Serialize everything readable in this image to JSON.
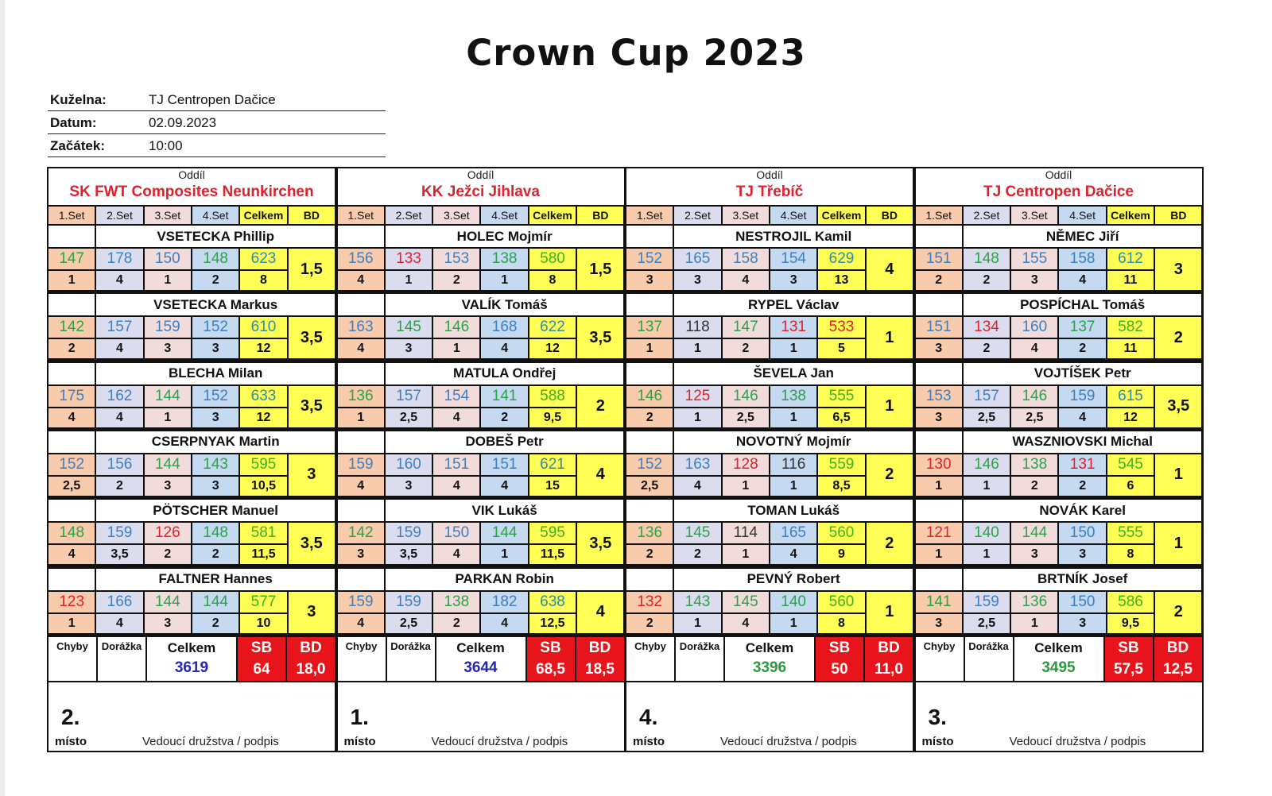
{
  "title": "Crown Cup 2023",
  "info": [
    {
      "label": "Kuželna:",
      "value": "TJ Centropen Dačice"
    },
    {
      "label": "Datum:",
      "value": "02.09.2023"
    },
    {
      "label": "Začátek:",
      "value": "10:00"
    }
  ],
  "labels": {
    "oddil": "Oddíl",
    "sets": [
      "1.Set",
      "2.Set",
      "3.Set",
      "4.Set",
      "Celkem",
      "BD"
    ],
    "chyby": "Chyby",
    "dorazka": "Dorážka",
    "celkem": "Celkem",
    "sb": "SB",
    "bd": "BD",
    "misto": "místo",
    "podpis": "Vedoucí družstva / podpis"
  },
  "colors": {
    "green": "#2aa24a",
    "blue": "#3a7fc4",
    "red": "#e0202a",
    "black": "#333333",
    "total_high": "#2c8fa6",
    "total_mid": "#3db41e",
    "sum_blue": "#2626b8",
    "sum_green": "#2a9a3a"
  },
  "teams": [
    {
      "name": "SK FWT Composites Neunkirchen",
      "players": [
        {
          "name": "VSETECKA Phillip",
          "scores": [
            147,
            178,
            150,
            148,
            623
          ],
          "ranks": [
            "1",
            "4",
            "1",
            "2",
            "8"
          ],
          "bd": "1,5"
        },
        {
          "name": "VSETECKA Markus",
          "scores": [
            142,
            157,
            159,
            152,
            610
          ],
          "ranks": [
            "2",
            "4",
            "3",
            "3",
            "12"
          ],
          "bd": "3,5"
        },
        {
          "name": "BLECHA Milan",
          "scores": [
            175,
            162,
            144,
            152,
            633
          ],
          "ranks": [
            "4",
            "4",
            "1",
            "3",
            "12"
          ],
          "bd": "3,5"
        },
        {
          "name": "CSERPNYAK Martin",
          "scores": [
            152,
            156,
            144,
            143,
            595
          ],
          "ranks": [
            "2,5",
            "2",
            "3",
            "3",
            "10,5"
          ],
          "bd": "3"
        },
        {
          "name": "PÖTSCHER Manuel",
          "scores": [
            148,
            159,
            126,
            148,
            581
          ],
          "ranks": [
            "4",
            "3,5",
            "2",
            "2",
            "11,5"
          ],
          "bd": "3,5"
        },
        {
          "name": "FALTNER Hannes",
          "scores": [
            123,
            166,
            144,
            144,
            577
          ],
          "ranks": [
            "1",
            "4",
            "3",
            "2",
            "10"
          ],
          "bd": "3"
        }
      ],
      "total": "3619",
      "total_color": "sum_blue",
      "sb": "64",
      "bd": "18,0",
      "place": "2."
    },
    {
      "name": "KK Ježci Jihlava",
      "players": [
        {
          "name": "HOLEC Mojmír",
          "scores": [
            156,
            133,
            153,
            138,
            580
          ],
          "ranks": [
            "4",
            "1",
            "2",
            "1",
            "8"
          ],
          "bd": "1,5"
        },
        {
          "name": "VALÍK Tomáš",
          "scores": [
            163,
            145,
            146,
            168,
            622
          ],
          "ranks": [
            "4",
            "3",
            "1",
            "4",
            "12"
          ],
          "bd": "3,5"
        },
        {
          "name": "MATULA Ondřej",
          "scores": [
            136,
            157,
            154,
            141,
            588
          ],
          "ranks": [
            "1",
            "2,5",
            "4",
            "2",
            "9,5"
          ],
          "bd": "2"
        },
        {
          "name": "DOBEŠ Petr",
          "scores": [
            159,
            160,
            151,
            151,
            621
          ],
          "ranks": [
            "4",
            "3",
            "4",
            "4",
            "15"
          ],
          "bd": "4"
        },
        {
          "name": "VIK Lukáš",
          "scores": [
            142,
            159,
            150,
            144,
            595
          ],
          "ranks": [
            "3",
            "3,5",
            "4",
            "1",
            "11,5"
          ],
          "bd": "3,5"
        },
        {
          "name": "PARKAN Robin",
          "scores": [
            159,
            159,
            138,
            182,
            638
          ],
          "ranks": [
            "4",
            "2,5",
            "2",
            "4",
            "12,5"
          ],
          "bd": "4"
        }
      ],
      "total": "3644",
      "total_color": "sum_blue",
      "sb": "68,5",
      "bd": "18,5",
      "place": "1."
    },
    {
      "name": "TJ Třebíč",
      "players": [
        {
          "name": "NESTROJIL Kamil",
          "scores": [
            152,
            165,
            158,
            154,
            629
          ],
          "ranks": [
            "3",
            "3",
            "4",
            "3",
            "13"
          ],
          "bd": "4"
        },
        {
          "name": "RYPEL Václav",
          "scores": [
            137,
            118,
            147,
            131,
            533
          ],
          "ranks": [
            "1",
            "1",
            "2",
            "1",
            "5"
          ],
          "bd": "1"
        },
        {
          "name": "ŠEVELA Jan",
          "scores": [
            146,
            125,
            146,
            138,
            555
          ],
          "ranks": [
            "2",
            "1",
            "2,5",
            "1",
            "6,5"
          ],
          "bd": "1"
        },
        {
          "name": "NOVOTNÝ Mojmír",
          "scores": [
            152,
            163,
            128,
            116,
            559
          ],
          "ranks": [
            "2,5",
            "4",
            "1",
            "1",
            "8,5"
          ],
          "bd": "2"
        },
        {
          "name": "TOMAN Lukáš",
          "scores": [
            136,
            145,
            114,
            165,
            560
          ],
          "ranks": [
            "2",
            "2",
            "1",
            "4",
            "9"
          ],
          "bd": "2"
        },
        {
          "name": "PEVNÝ Robert",
          "scores": [
            132,
            143,
            145,
            140,
            560
          ],
          "ranks": [
            "2",
            "1",
            "4",
            "1",
            "8"
          ],
          "bd": "1"
        }
      ],
      "total": "3396",
      "total_color": "sum_green",
      "sb": "50",
      "bd": "11,0",
      "place": "4."
    },
    {
      "name": "TJ Centropen Dačice",
      "players": [
        {
          "name": "NĚMEC Jiří",
          "scores": [
            151,
            148,
            155,
            158,
            612
          ],
          "ranks": [
            "2",
            "2",
            "3",
            "4",
            "11"
          ],
          "bd": "3"
        },
        {
          "name": "POSPÍCHAL Tomáš",
          "scores": [
            151,
            134,
            160,
            137,
            582
          ],
          "ranks": [
            "3",
            "2",
            "4",
            "2",
            "11"
          ],
          "bd": "2"
        },
        {
          "name": "VOJTÍŠEK Petr",
          "scores": [
            153,
            157,
            146,
            159,
            615
          ],
          "ranks": [
            "3",
            "2,5",
            "2,5",
            "4",
            "12"
          ],
          "bd": "3,5"
        },
        {
          "name": "WASZNIOVSKI Michal",
          "scores": [
            130,
            146,
            138,
            131,
            545
          ],
          "ranks": [
            "1",
            "1",
            "2",
            "2",
            "6"
          ],
          "bd": "1"
        },
        {
          "name": "NOVÁK Karel",
          "scores": [
            121,
            140,
            144,
            150,
            555
          ],
          "ranks": [
            "1",
            "1",
            "3",
            "3",
            "8"
          ],
          "bd": "1"
        },
        {
          "name": "BRTNÍK Josef",
          "scores": [
            141,
            159,
            136,
            150,
            586
          ],
          "ranks": [
            "3",
            "2,5",
            "1",
            "3",
            "9,5"
          ],
          "bd": "2"
        }
      ],
      "total": "3495",
      "total_color": "sum_green",
      "sb": "57,5",
      "bd": "12,5",
      "place": "3."
    }
  ]
}
